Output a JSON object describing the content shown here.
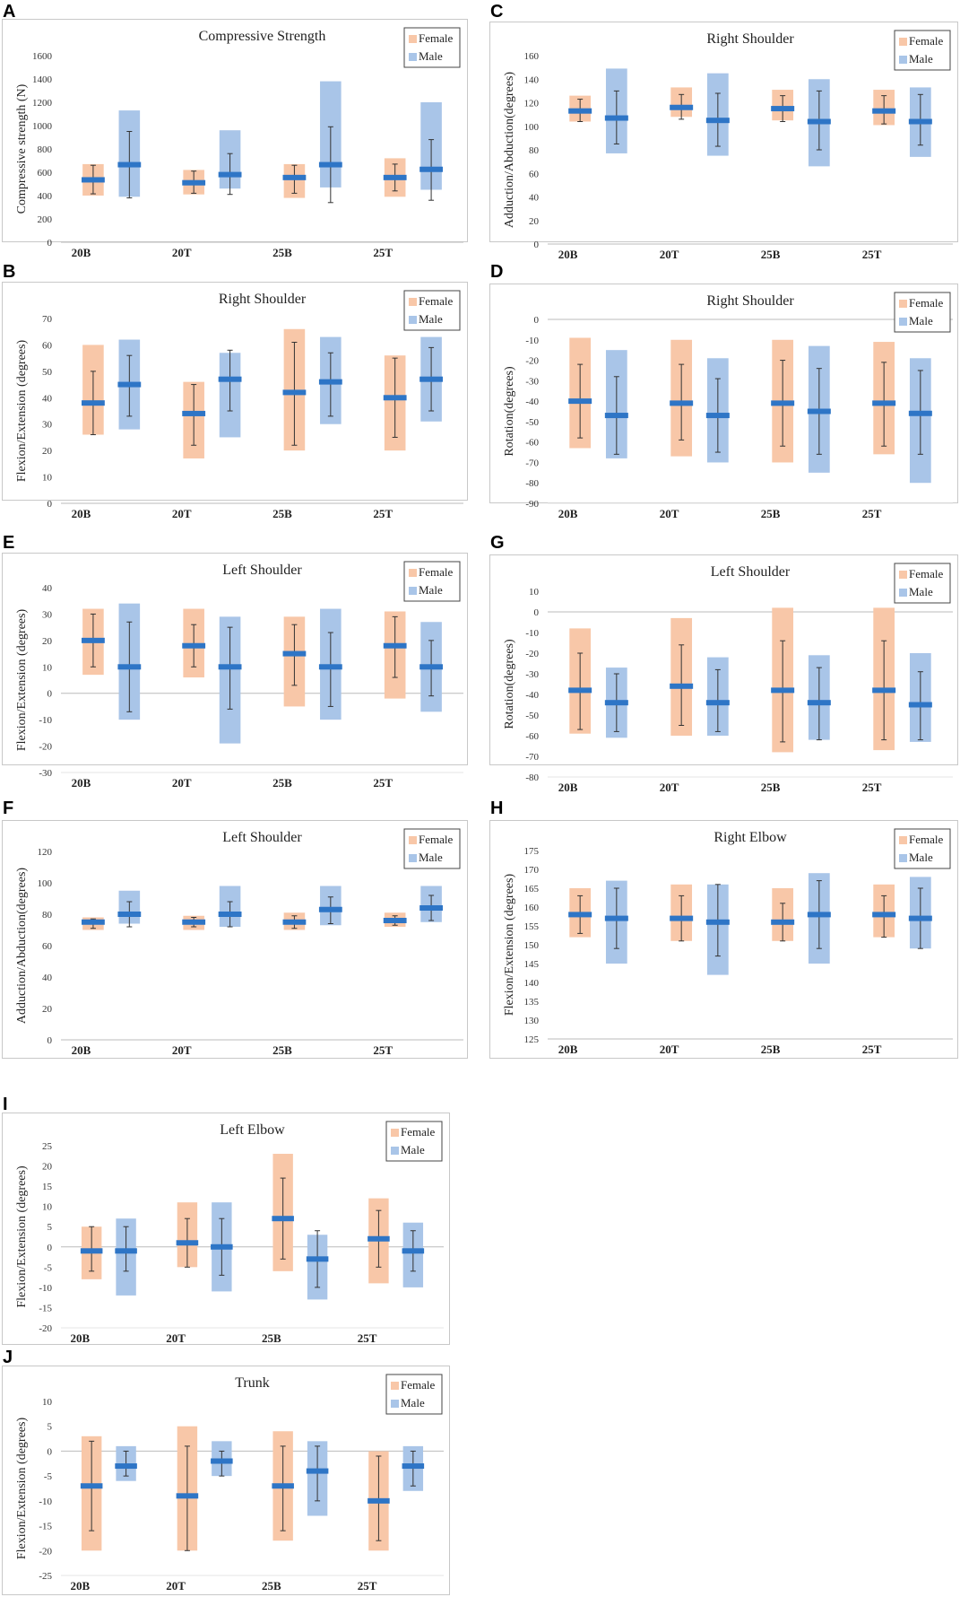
{
  "figure": {
    "categories": [
      "20B",
      "20T",
      "25B",
      "25T"
    ],
    "legend": {
      "female": "Female",
      "male": "Male"
    },
    "colors": {
      "female_fill": "#f8c7a8",
      "male_fill": "#a9c5e8",
      "mean_bar": "#2e75c6",
      "whisker": "#333333",
      "frame": "#c8c8c8",
      "zero_line": "#bbbbbb"
    }
  },
  "chart_data": [
    {
      "panel": "A",
      "type": "bar",
      "title": "Compressive Strength",
      "ylabel": "Compressive strength (N)",
      "categories": [
        "20B",
        "20T",
        "25B",
        "25T"
      ],
      "ylim": [
        0,
        1600
      ],
      "ticks": [
        0,
        200,
        400,
        600,
        800,
        1000,
        1200,
        1400,
        1600
      ],
      "series": [
        {
          "name": "Female",
          "range_low": [
            400,
            410,
            380,
            390
          ],
          "range_high": [
            670,
            620,
            670,
            720
          ],
          "mean": [
            535,
            510,
            555,
            555
          ],
          "err_low": [
            415,
            420,
            420,
            440
          ],
          "err_high": [
            660,
            610,
            660,
            670
          ]
        },
        {
          "name": "Male",
          "range_low": [
            390,
            460,
            470,
            450
          ],
          "range_high": [
            1130,
            960,
            1380,
            1200
          ],
          "mean": [
            665,
            580,
            665,
            625
          ],
          "err_low": [
            380,
            410,
            340,
            360
          ],
          "err_high": [
            950,
            760,
            990,
            880
          ]
        }
      ]
    },
    {
      "panel": "C",
      "type": "bar",
      "title": "Right Shoulder",
      "ylabel": "Adduction/Abduction(degrees)",
      "categories": [
        "20B",
        "20T",
        "25B",
        "25T"
      ],
      "ylim": [
        0,
        160
      ],
      "ticks": [
        0,
        20,
        40,
        60,
        80,
        100,
        120,
        140,
        160
      ],
      "series": [
        {
          "name": "Female",
          "range_low": [
            104,
            108,
            105,
            101
          ],
          "range_high": [
            126,
            133,
            131,
            131
          ],
          "mean": [
            113,
            116,
            115,
            113
          ],
          "err_low": [
            104,
            106,
            104,
            102
          ],
          "err_high": [
            123,
            127,
            126,
            126
          ]
        },
        {
          "name": "Male",
          "range_low": [
            77,
            75,
            66,
            74
          ],
          "range_high": [
            149,
            145,
            140,
            133
          ],
          "mean": [
            107,
            105,
            104,
            104
          ],
          "err_low": [
            85,
            83,
            80,
            84
          ],
          "err_high": [
            130,
            128,
            130,
            127
          ]
        }
      ]
    },
    {
      "panel": "B",
      "type": "bar",
      "title": "Right Shoulder",
      "ylabel": "Flexion/Extension (degrees)",
      "categories": [
        "20B",
        "20T",
        "25B",
        "25T"
      ],
      "ylim": [
        0,
        70
      ],
      "ticks": [
        0,
        10,
        20,
        30,
        40,
        50,
        60,
        70
      ],
      "series": [
        {
          "name": "Female",
          "range_low": [
            26,
            17,
            20,
            20
          ],
          "range_high": [
            60,
            46,
            66,
            56
          ],
          "mean": [
            38,
            34,
            42,
            40
          ],
          "err_low": [
            26,
            22,
            22,
            25
          ],
          "err_high": [
            50,
            45,
            61,
            55
          ]
        },
        {
          "name": "Male",
          "range_low": [
            28,
            25,
            30,
            31
          ],
          "range_high": [
            62,
            57,
            63,
            63
          ],
          "mean": [
            45,
            47,
            46,
            47
          ],
          "err_low": [
            33,
            35,
            33,
            35
          ],
          "err_high": [
            56,
            58,
            57,
            59
          ]
        }
      ]
    },
    {
      "panel": "D",
      "type": "bar",
      "title": "Right Shoulder",
      "ylabel": "Rotation(degrees)",
      "categories": [
        "20B",
        "20T",
        "25B",
        "25T"
      ],
      "ylim": [
        -90,
        0
      ],
      "ticks": [
        -90,
        -80,
        -70,
        -60,
        -50,
        -40,
        -30,
        -20,
        -10,
        0
      ],
      "series": [
        {
          "name": "Female",
          "range_low": [
            -63,
            -67,
            -70,
            -66
          ],
          "range_high": [
            -9,
            -10,
            -10,
            -11
          ],
          "mean": [
            -40,
            -41,
            -41,
            -41
          ],
          "err_low": [
            -58,
            -59,
            -62,
            -62
          ],
          "err_high": [
            -22,
            -22,
            -20,
            -21
          ]
        },
        {
          "name": "Male",
          "range_low": [
            -68,
            -70,
            -75,
            -80
          ],
          "range_high": [
            -15,
            -19,
            -13,
            -19
          ],
          "mean": [
            -47,
            -47,
            -45,
            -46
          ],
          "err_low": [
            -66,
            -65,
            -66,
            -66
          ],
          "err_high": [
            -28,
            -29,
            -24,
            -25
          ]
        }
      ]
    },
    {
      "panel": "E",
      "type": "bar",
      "title": "Left Shoulder",
      "ylabel": "Flexion/Extension (degrees)",
      "categories": [
        "20B",
        "20T",
        "25B",
        "25T"
      ],
      "ylim": [
        -30,
        40
      ],
      "ticks": [
        -30,
        -20,
        -10,
        0,
        10,
        20,
        30,
        40
      ],
      "series": [
        {
          "name": "Female",
          "range_low": [
            7,
            6,
            -5,
            -2
          ],
          "range_high": [
            32,
            32,
            29,
            31
          ],
          "mean": [
            20,
            18,
            15,
            18
          ],
          "err_low": [
            10,
            10,
            3,
            6
          ],
          "err_high": [
            30,
            26,
            26,
            29
          ]
        },
        {
          "name": "Male",
          "range_low": [
            -10,
            -19,
            -10,
            -7
          ],
          "range_high": [
            34,
            29,
            32,
            27
          ],
          "mean": [
            10,
            10,
            10,
            10
          ],
          "err_low": [
            -7,
            -6,
            -5,
            -1
          ],
          "err_high": [
            27,
            25,
            23,
            20
          ]
        }
      ]
    },
    {
      "panel": "G",
      "type": "bar",
      "title": "Left Shoulder",
      "ylabel": "Rotation(degrees)",
      "categories": [
        "20B",
        "20T",
        "25B",
        "25T"
      ],
      "ylim": [
        -80,
        10
      ],
      "ticks": [
        -80,
        -70,
        -60,
        -50,
        -40,
        -30,
        -20,
        -10,
        0,
        10
      ],
      "series": [
        {
          "name": "Female",
          "range_low": [
            -59,
            -60,
            -68,
            -67
          ],
          "range_high": [
            -8,
            -3,
            2,
            2
          ],
          "mean": [
            -38,
            -36,
            -38,
            -38
          ],
          "err_low": [
            -57,
            -55,
            -63,
            -62
          ],
          "err_high": [
            -20,
            -16,
            -14,
            -14
          ]
        },
        {
          "name": "Male",
          "range_low": [
            -61,
            -60,
            -62,
            -63
          ],
          "range_high": [
            -27,
            -22,
            -21,
            -20
          ],
          "mean": [
            -44,
            -44,
            -44,
            -45
          ],
          "err_low": [
            -58,
            -58,
            -62,
            -62
          ],
          "err_high": [
            -30,
            -28,
            -27,
            -29
          ]
        }
      ]
    },
    {
      "panel": "F",
      "type": "bar",
      "title": "Left Shoulder",
      "ylabel": "Adduction/Abduction(degrees)",
      "categories": [
        "20B",
        "20T",
        "25B",
        "25T"
      ],
      "ylim": [
        0,
        120
      ],
      "ticks": [
        0,
        20,
        40,
        60,
        80,
        100,
        120
      ],
      "series": [
        {
          "name": "Female",
          "range_low": [
            70,
            70,
            70,
            72
          ],
          "range_high": [
            78,
            79,
            81,
            81
          ],
          "mean": [
            75,
            75,
            75,
            76
          ],
          "err_low": [
            71,
            72,
            71,
            73
          ],
          "err_high": [
            77,
            78,
            79,
            79
          ]
        },
        {
          "name": "Male",
          "range_low": [
            74,
            72,
            73,
            75
          ],
          "range_high": [
            95,
            98,
            98,
            98
          ],
          "mean": [
            80,
            80,
            83,
            84
          ],
          "err_low": [
            72,
            72,
            74,
            76
          ],
          "err_high": [
            88,
            88,
            91,
            92
          ]
        }
      ]
    },
    {
      "panel": "H",
      "type": "bar",
      "title": "Right Elbow",
      "ylabel": "Flexion/Extension (degrees)",
      "categories": [
        "20B",
        "20T",
        "25B",
        "25T"
      ],
      "ylim": [
        125,
        175
      ],
      "ticks": [
        125,
        130,
        135,
        140,
        145,
        150,
        155,
        160,
        165,
        170,
        175
      ],
      "series": [
        {
          "name": "Female",
          "range_low": [
            152,
            151,
            151,
            152
          ],
          "range_high": [
            165,
            166,
            165,
            166
          ],
          "mean": [
            158,
            157,
            156,
            158
          ],
          "err_low": [
            153,
            151,
            151,
            152
          ],
          "err_high": [
            163,
            163,
            161,
            163
          ]
        },
        {
          "name": "Male",
          "range_low": [
            145,
            142,
            145,
            149
          ],
          "range_high": [
            167,
            166,
            169,
            168
          ],
          "mean": [
            157,
            156,
            158,
            157
          ],
          "err_low": [
            149,
            147,
            149,
            149
          ],
          "err_high": [
            165,
            166,
            167,
            165
          ]
        }
      ]
    },
    {
      "panel": "I",
      "type": "bar",
      "title": "Left Elbow",
      "ylabel": "Flexion/Extension (degrees)",
      "categories": [
        "20B",
        "20T",
        "25B",
        "25T"
      ],
      "ylim": [
        -20,
        25
      ],
      "ticks": [
        -20,
        -15,
        -10,
        -5,
        0,
        5,
        10,
        15,
        20,
        25
      ],
      "series": [
        {
          "name": "Female",
          "range_low": [
            -8,
            -5,
            -6,
            -9
          ],
          "range_high": [
            5,
            11,
            23,
            12
          ],
          "mean": [
            -1,
            1,
            7,
            2
          ],
          "err_low": [
            -6,
            -5,
            -3,
            -5
          ],
          "err_high": [
            5,
            7,
            17,
            9
          ]
        },
        {
          "name": "Male",
          "range_low": [
            -12,
            -11,
            -13,
            -10
          ],
          "range_high": [
            7,
            11,
            3,
            6
          ],
          "mean": [
            -1,
            0,
            -3,
            -1
          ],
          "err_low": [
            -6,
            -7,
            -10,
            -6
          ],
          "err_high": [
            5,
            7,
            4,
            4
          ]
        }
      ]
    },
    {
      "panel": "J",
      "type": "bar",
      "title": "Trunk",
      "ylabel": "Flexion/Extension (degrees)",
      "categories": [
        "20B",
        "20T",
        "25B",
        "25T"
      ],
      "ylim": [
        -25,
        10
      ],
      "ticks": [
        -25,
        -20,
        -15,
        -10,
        -5,
        0,
        5,
        10
      ],
      "series": [
        {
          "name": "Female",
          "range_low": [
            -20,
            -20,
            -18,
            -20
          ],
          "range_high": [
            3,
            5,
            4,
            0
          ],
          "mean": [
            -7,
            -9,
            -7,
            -10
          ],
          "err_low": [
            -16,
            -20,
            -16,
            -18
          ],
          "err_high": [
            2,
            1,
            1,
            -1
          ]
        },
        {
          "name": "Male",
          "range_low": [
            -6,
            -5,
            -13,
            -8
          ],
          "range_high": [
            1,
            2,
            2,
            1
          ],
          "mean": [
            -3,
            -2,
            -4,
            -3
          ],
          "err_low": [
            -5,
            -5,
            -10,
            -7
          ],
          "err_high": [
            0,
            0,
            1,
            0
          ]
        }
      ]
    }
  ]
}
